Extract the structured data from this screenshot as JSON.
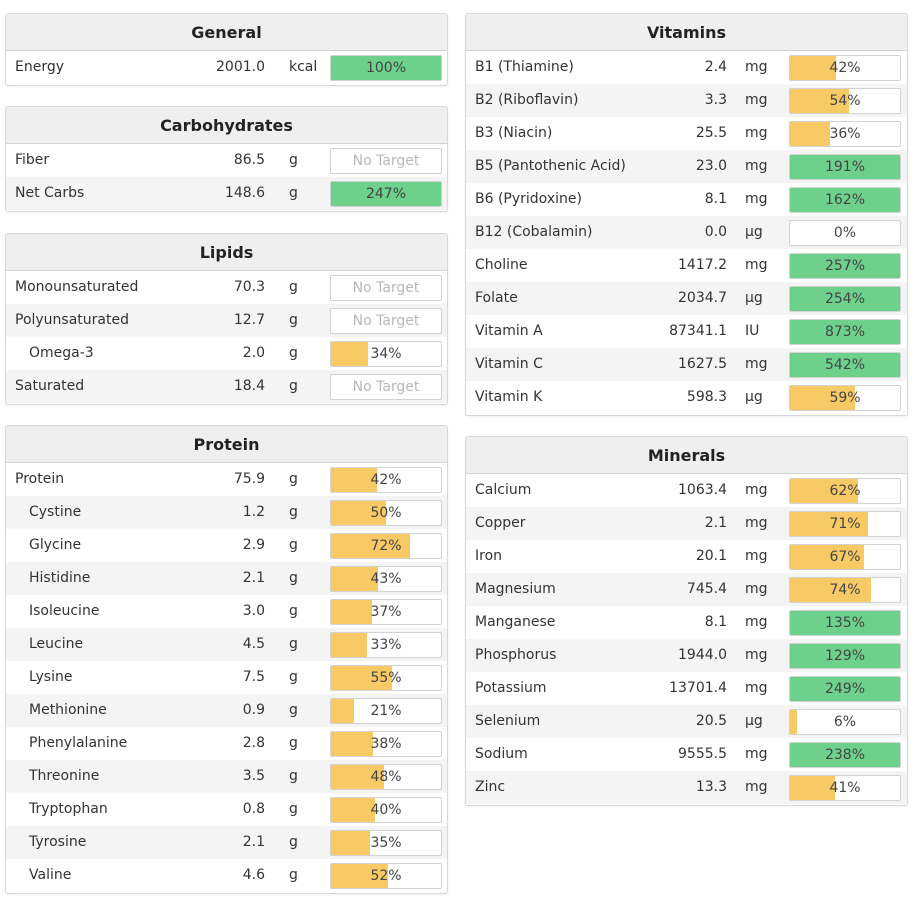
{
  "colors": {
    "green": "#6dd18c",
    "yellow": "#f7ca66",
    "header_bg": "#efefef"
  },
  "general": {
    "title": "General",
    "rows": [
      {
        "name": "Energy",
        "amount": "2001.0",
        "unit": "kcal",
        "pct_label": "100%",
        "fill": 1.0,
        "color": "green"
      }
    ]
  },
  "carbohydrates": {
    "title": "Carbohydrates",
    "rows": [
      {
        "name": "Fiber",
        "amount": "86.5",
        "unit": "g",
        "pct_label": "No Target",
        "fill": 0,
        "color": "none"
      },
      {
        "name": "Net Carbs",
        "amount": "148.6",
        "unit": "g",
        "pct_label": "247%",
        "fill": 1.0,
        "color": "green"
      }
    ]
  },
  "lipids": {
    "title": "Lipids",
    "rows": [
      {
        "name": "Monounsaturated",
        "amount": "70.3",
        "unit": "g",
        "pct_label": "No Target",
        "fill": 0,
        "color": "none"
      },
      {
        "name": "Polyunsaturated",
        "amount": "12.7",
        "unit": "g",
        "pct_label": "No Target",
        "fill": 0,
        "color": "none"
      },
      {
        "name": "Omega-3",
        "amount": "2.0",
        "unit": "g",
        "pct_label": "34%",
        "fill": 0.34,
        "color": "yellow",
        "indent": true
      },
      {
        "name": "Saturated",
        "amount": "18.4",
        "unit": "g",
        "pct_label": "No Target",
        "fill": 0,
        "color": "none"
      }
    ]
  },
  "protein": {
    "title": "Protein",
    "rows": [
      {
        "name": "Protein",
        "amount": "75.9",
        "unit": "g",
        "pct_label": "42%",
        "fill": 0.42,
        "color": "yellow"
      },
      {
        "name": "Cystine",
        "amount": "1.2",
        "unit": "g",
        "pct_label": "50%",
        "fill": 0.5,
        "color": "yellow",
        "indent": true
      },
      {
        "name": "Glycine",
        "amount": "2.9",
        "unit": "g",
        "pct_label": "72%",
        "fill": 0.72,
        "color": "yellow",
        "indent": true
      },
      {
        "name": "Histidine",
        "amount": "2.1",
        "unit": "g",
        "pct_label": "43%",
        "fill": 0.43,
        "color": "yellow",
        "indent": true
      },
      {
        "name": "Isoleucine",
        "amount": "3.0",
        "unit": "g",
        "pct_label": "37%",
        "fill": 0.37,
        "color": "yellow",
        "indent": true
      },
      {
        "name": "Leucine",
        "amount": "4.5",
        "unit": "g",
        "pct_label": "33%",
        "fill": 0.33,
        "color": "yellow",
        "indent": true
      },
      {
        "name": "Lysine",
        "amount": "7.5",
        "unit": "g",
        "pct_label": "55%",
        "fill": 0.55,
        "color": "yellow",
        "indent": true
      },
      {
        "name": "Methionine",
        "amount": "0.9",
        "unit": "g",
        "pct_label": "21%",
        "fill": 0.21,
        "color": "yellow",
        "indent": true
      },
      {
        "name": "Phenylalanine",
        "amount": "2.8",
        "unit": "g",
        "pct_label": "38%",
        "fill": 0.38,
        "color": "yellow",
        "indent": true
      },
      {
        "name": "Threonine",
        "amount": "3.5",
        "unit": "g",
        "pct_label": "48%",
        "fill": 0.48,
        "color": "yellow",
        "indent": true
      },
      {
        "name": "Tryptophan",
        "amount": "0.8",
        "unit": "g",
        "pct_label": "40%",
        "fill": 0.4,
        "color": "yellow",
        "indent": true
      },
      {
        "name": "Tyrosine",
        "amount": "2.1",
        "unit": "g",
        "pct_label": "35%",
        "fill": 0.35,
        "color": "yellow",
        "indent": true
      },
      {
        "name": "Valine",
        "amount": "4.6",
        "unit": "g",
        "pct_label": "52%",
        "fill": 0.52,
        "color": "yellow",
        "indent": true
      }
    ]
  },
  "vitamins": {
    "title": "Vitamins",
    "rows": [
      {
        "name": "B1 (Thiamine)",
        "amount": "2.4",
        "unit": "mg",
        "pct_label": "42%",
        "fill": 0.42,
        "color": "yellow"
      },
      {
        "name": "B2 (Riboflavin)",
        "amount": "3.3",
        "unit": "mg",
        "pct_label": "54%",
        "fill": 0.54,
        "color": "yellow"
      },
      {
        "name": "B3 (Niacin)",
        "amount": "25.5",
        "unit": "mg",
        "pct_label": "36%",
        "fill": 0.36,
        "color": "yellow"
      },
      {
        "name": "B5 (Pantothenic Acid)",
        "amount": "23.0",
        "unit": "mg",
        "pct_label": "191%",
        "fill": 1.0,
        "color": "green"
      },
      {
        "name": "B6 (Pyridoxine)",
        "amount": "8.1",
        "unit": "mg",
        "pct_label": "162%",
        "fill": 1.0,
        "color": "green"
      },
      {
        "name": "B12 (Cobalamin)",
        "amount": "0.0",
        "unit": "µg",
        "pct_label": "0%",
        "fill": 0,
        "color": "yellow"
      },
      {
        "name": "Choline",
        "amount": "1417.2",
        "unit": "mg",
        "pct_label": "257%",
        "fill": 1.0,
        "color": "green"
      },
      {
        "name": "Folate",
        "amount": "2034.7",
        "unit": "µg",
        "pct_label": "254%",
        "fill": 1.0,
        "color": "green"
      },
      {
        "name": "Vitamin A",
        "amount": "87341.1",
        "unit": "IU",
        "pct_label": "873%",
        "fill": 1.0,
        "color": "green"
      },
      {
        "name": "Vitamin C",
        "amount": "1627.5",
        "unit": "mg",
        "pct_label": "542%",
        "fill": 1.0,
        "color": "green"
      },
      {
        "name": "Vitamin K",
        "amount": "598.3",
        "unit": "µg",
        "pct_label": "59%",
        "fill": 0.59,
        "color": "yellow"
      }
    ]
  },
  "minerals": {
    "title": "Minerals",
    "rows": [
      {
        "name": "Calcium",
        "amount": "1063.4",
        "unit": "mg",
        "pct_label": "62%",
        "fill": 0.62,
        "color": "yellow"
      },
      {
        "name": "Copper",
        "amount": "2.1",
        "unit": "mg",
        "pct_label": "71%",
        "fill": 0.71,
        "color": "yellow"
      },
      {
        "name": "Iron",
        "amount": "20.1",
        "unit": "mg",
        "pct_label": "67%",
        "fill": 0.67,
        "color": "yellow"
      },
      {
        "name": "Magnesium",
        "amount": "745.4",
        "unit": "mg",
        "pct_label": "74%",
        "fill": 0.74,
        "color": "yellow"
      },
      {
        "name": "Manganese",
        "amount": "8.1",
        "unit": "mg",
        "pct_label": "135%",
        "fill": 1.0,
        "color": "green"
      },
      {
        "name": "Phosphorus",
        "amount": "1944.0",
        "unit": "mg",
        "pct_label": "129%",
        "fill": 1.0,
        "color": "green"
      },
      {
        "name": "Potassium",
        "amount": "13701.4",
        "unit": "mg",
        "pct_label": "249%",
        "fill": 1.0,
        "color": "green"
      },
      {
        "name": "Selenium",
        "amount": "20.5",
        "unit": "µg",
        "pct_label": "6%",
        "fill": 0.06,
        "color": "yellow"
      },
      {
        "name": "Sodium",
        "amount": "9555.5",
        "unit": "mg",
        "pct_label": "238%",
        "fill": 1.0,
        "color": "green"
      },
      {
        "name": "Zinc",
        "amount": "13.3",
        "unit": "mg",
        "pct_label": "41%",
        "fill": 0.41,
        "color": "yellow"
      }
    ]
  }
}
